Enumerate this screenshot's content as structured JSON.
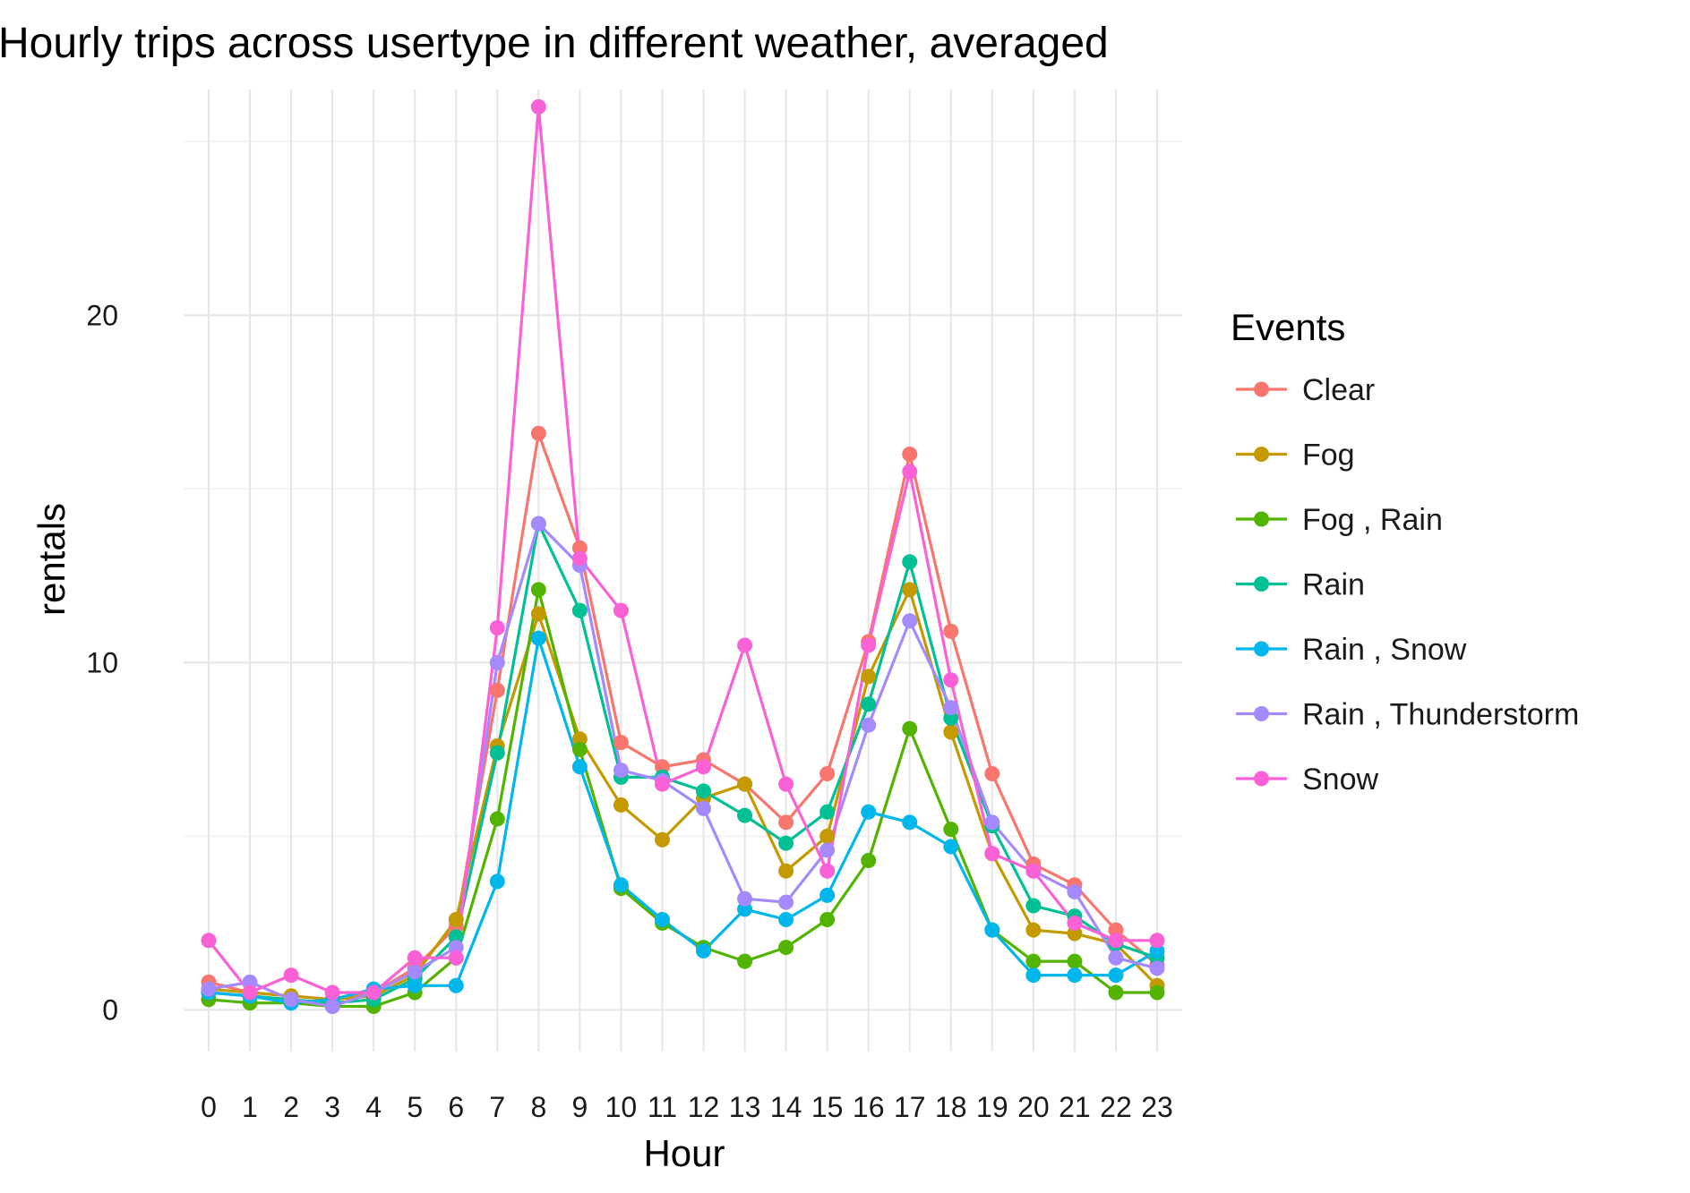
{
  "chart_data": {
    "type": "line",
    "title": "Hourly trips across usertype in different weather, averaged",
    "xlabel": "Hour",
    "ylabel": "rentals",
    "x": [
      0,
      1,
      2,
      3,
      4,
      5,
      6,
      7,
      8,
      9,
      10,
      11,
      12,
      13,
      14,
      15,
      16,
      17,
      18,
      19,
      20,
      21,
      22,
      23
    ],
    "x_tick_labels": [
      "0",
      "1",
      "2",
      "3",
      "4",
      "5",
      "6",
      "7",
      "8",
      "9",
      "10",
      "11",
      "12",
      "13",
      "14",
      "15",
      "16",
      "17",
      "18",
      "19",
      "20",
      "21",
      "22",
      "23"
    ],
    "y_ticks": [
      0,
      10,
      20
    ],
    "y_tick_labels": [
      "0",
      "10",
      "20"
    ],
    "ylim": [
      -1.2,
      26.5
    ],
    "grid": true,
    "legend_title": "Events",
    "legend_position": "right",
    "series": [
      {
        "name": "Clear",
        "color": "#F8766D",
        "values": [
          0.8,
          0.5,
          0.4,
          0.3,
          0.5,
          1.2,
          2.4,
          9.2,
          16.6,
          13.3,
          7.7,
          7.0,
          7.2,
          6.5,
          5.4,
          6.8,
          10.6,
          16.0,
          10.9,
          6.8,
          4.2,
          3.6,
          2.3,
          1.3
        ]
      },
      {
        "name": "Fog",
        "color": "#C49A00",
        "values": [
          0.6,
          0.5,
          0.4,
          0.3,
          0.4,
          1.0,
          2.6,
          7.6,
          11.4,
          7.8,
          5.9,
          4.9,
          6.1,
          6.5,
          4.0,
          5.0,
          9.6,
          12.1,
          8.0,
          4.5,
          2.3,
          2.2,
          1.9,
          0.7
        ]
      },
      {
        "name": "Fog , Rain",
        "color": "#53B400",
        "values": [
          0.3,
          0.2,
          0.2,
          0.1,
          0.1,
          0.5,
          1.5,
          5.5,
          12.1,
          7.5,
          3.5,
          2.5,
          1.8,
          1.4,
          1.8,
          2.6,
          4.3,
          8.1,
          5.2,
          2.3,
          1.4,
          1.4,
          0.5,
          0.5
        ]
      },
      {
        "name": "Rain",
        "color": "#00C094",
        "values": [
          0.5,
          0.4,
          0.3,
          0.2,
          0.3,
          0.9,
          2.1,
          7.4,
          14.0,
          11.5,
          6.7,
          6.7,
          6.3,
          5.6,
          4.8,
          5.7,
          8.8,
          12.9,
          8.4,
          5.3,
          3.0,
          2.7,
          1.9,
          1.5
        ]
      },
      {
        "name": "Rain , Snow",
        "color": "#00B6EB",
        "values": [
          0.5,
          0.4,
          0.2,
          0.3,
          0.6,
          0.7,
          0.7,
          3.7,
          10.7,
          7.0,
          3.6,
          2.6,
          1.7,
          2.9,
          2.6,
          3.3,
          5.7,
          5.4,
          4.7,
          2.3,
          1.0,
          1.0,
          1.0,
          1.7
        ]
      },
      {
        "name": "Rain , Thunderstorm",
        "color": "#A58AFF",
        "values": [
          0.6,
          0.8,
          0.3,
          0.1,
          0.5,
          1.1,
          1.8,
          10.0,
          14.0,
          12.8,
          6.9,
          6.6,
          5.8,
          3.2,
          3.1,
          4.6,
          8.2,
          11.2,
          8.7,
          5.4,
          4.0,
          3.4,
          1.5,
          1.2
        ]
      },
      {
        "name": "Snow",
        "color": "#FB61D7",
        "values": [
          2.0,
          0.5,
          1.0,
          0.5,
          0.5,
          1.5,
          1.5,
          11.0,
          26.0,
          13.0,
          11.5,
          6.5,
          7.0,
          10.5,
          6.5,
          4.0,
          10.5,
          15.5,
          9.5,
          4.5,
          4.0,
          2.5,
          2.0,
          2.0
        ]
      }
    ]
  }
}
